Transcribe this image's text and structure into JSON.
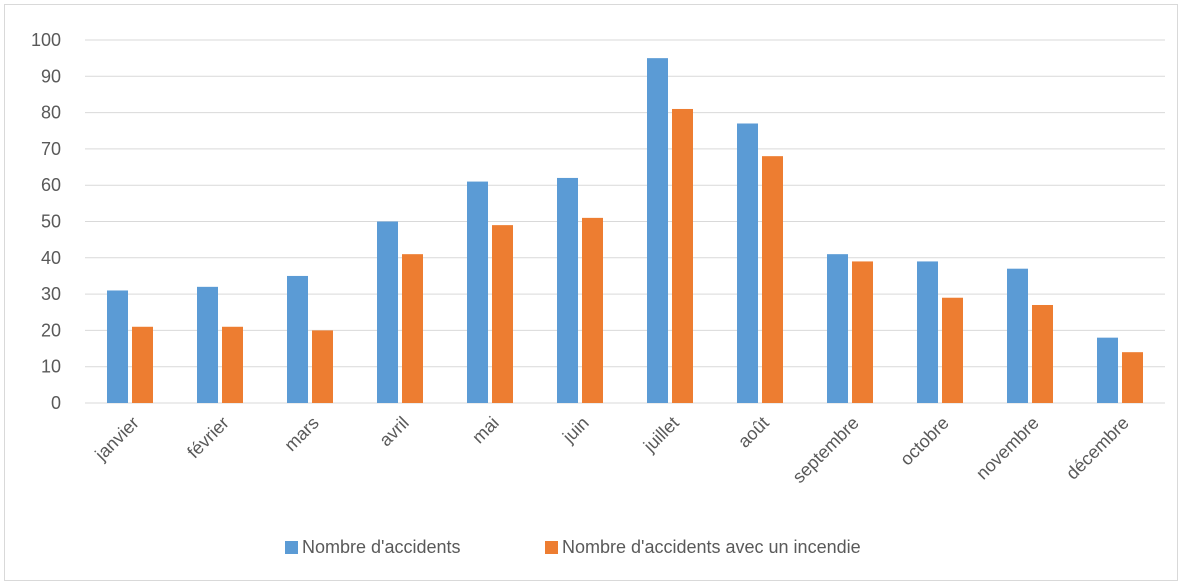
{
  "chart_data": {
    "type": "bar",
    "categories": [
      "janvier",
      "février",
      "mars",
      "avril",
      "mai",
      "juin",
      "juillet",
      "août",
      "septembre",
      "octobre",
      "novembre",
      "décembre"
    ],
    "series": [
      {
        "name": "Nombre d'accidents",
        "color": "#5b9bd5",
        "values": [
          31,
          32,
          35,
          50,
          61,
          62,
          95,
          77,
          41,
          39,
          37,
          18
        ]
      },
      {
        "name": "Nombre d'accidents avec un incendie",
        "color": "#ed7d31",
        "values": [
          21,
          21,
          20,
          41,
          49,
          51,
          81,
          68,
          39,
          29,
          27,
          14
        ]
      }
    ],
    "ylim": [
      0,
      100
    ],
    "yticks": [
      0,
      10,
      20,
      30,
      40,
      50,
      60,
      70,
      80,
      90,
      100
    ],
    "grid": true,
    "legend_position": "bottom"
  }
}
